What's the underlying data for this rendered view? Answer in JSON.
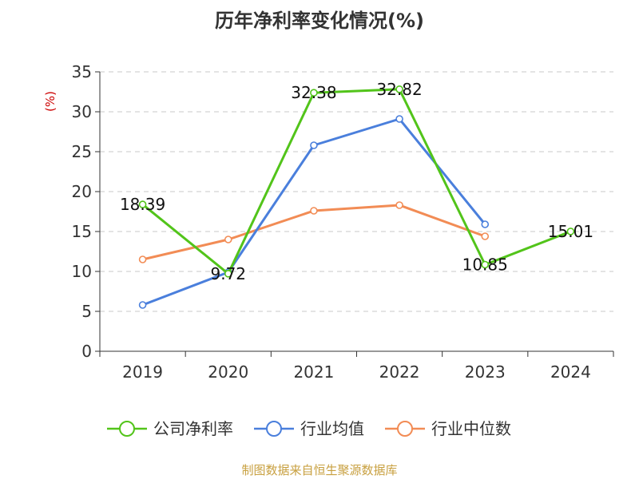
{
  "chart_data": {
    "type": "line",
    "title": "历年净利率变化情况(%)",
    "ylabel": "(%)",
    "xlabel": "",
    "categories": [
      "2019",
      "2020",
      "2021",
      "2022",
      "2023",
      "2024"
    ],
    "ylim": [
      0,
      35
    ],
    "yticks": [
      0,
      5,
      10,
      15,
      20,
      25,
      30,
      35
    ],
    "grid": true,
    "legend_position": "bottom",
    "series": [
      {
        "name": "公司净利率",
        "color": "#52c41a",
        "values": [
          18.39,
          9.72,
          32.38,
          32.82,
          10.85,
          15.01
        ],
        "labels": [
          "18.39",
          "9.72",
          "32.38",
          "32.82",
          "10.85",
          "15.01"
        ]
      },
      {
        "name": "行业均值",
        "color": "#4a7fdc",
        "values": [
          5.8,
          9.9,
          25.8,
          29.1,
          15.9,
          null
        ]
      },
      {
        "name": "行业中位数",
        "color": "#f28c55",
        "values": [
          11.5,
          14.0,
          17.6,
          18.3,
          14.4,
          null
        ]
      }
    ],
    "source": "制图数据来自恒生聚源数据库"
  }
}
